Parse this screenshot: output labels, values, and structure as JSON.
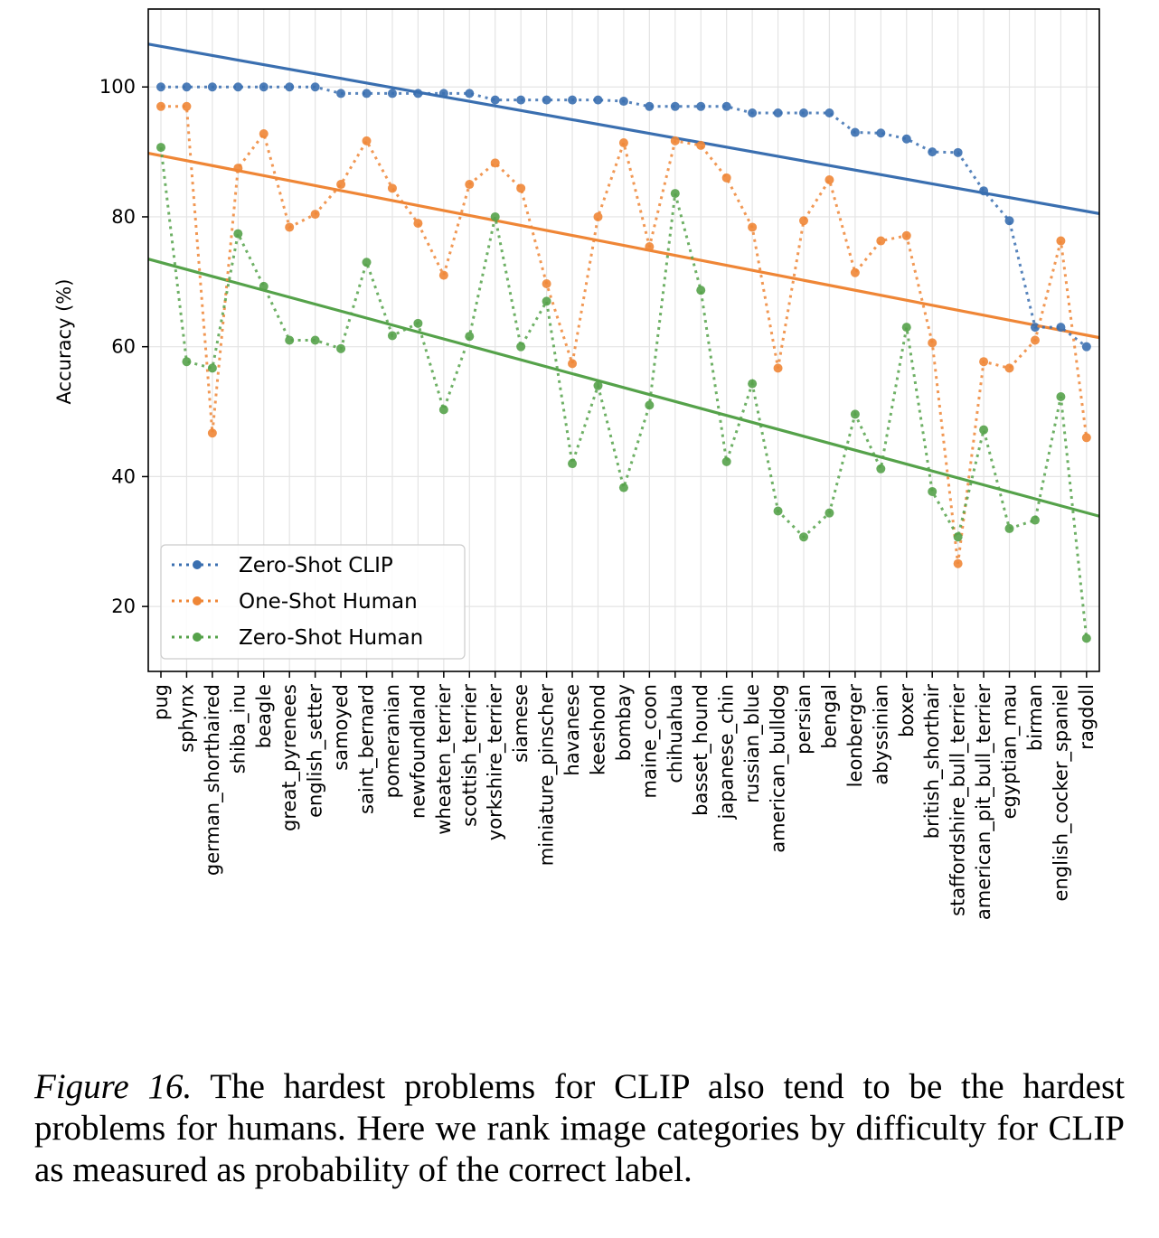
{
  "chart_data": {
    "type": "line",
    "title": "",
    "xlabel": "",
    "ylabel": "Accuracy (%)",
    "ylim": [
      10,
      112
    ],
    "yticks": [
      20,
      40,
      60,
      80,
      100
    ],
    "grid": true,
    "legend_position": "lower-left",
    "categories": [
      "pug",
      "sphynx",
      "german_shorthaired",
      "shiba_inu",
      "beagle",
      "great_pyrenees",
      "english_setter",
      "samoyed",
      "saint_bernard",
      "pomeranian",
      "newfoundland",
      "wheaten_terrier",
      "scottish_terrier",
      "yorkshire_terrier",
      "siamese",
      "miniature_pinscher",
      "havanese",
      "keeshond",
      "bombay",
      "maine_coon",
      "chihuahua",
      "basset_hound",
      "japanese_chin",
      "russian_blue",
      "american_bulldog",
      "persian",
      "bengal",
      "leonberger",
      "abyssinian",
      "boxer",
      "british_shorthair",
      "staffordshire_bull_terrier",
      "american_pit_bull_terrier",
      "egyptian_mau",
      "birman",
      "english_cocker_spaniel",
      "ragdoll"
    ],
    "series": [
      {
        "name": "Zero-Shot CLIP",
        "color": "#3a6fb0",
        "values": [
          100,
          100,
          100,
          100,
          100,
          100,
          100,
          99,
          99,
          99,
          99,
          99,
          99,
          98,
          98,
          98,
          98,
          98,
          97.8,
          97,
          97,
          97,
          97,
          96,
          96,
          96,
          96,
          93,
          92.9,
          92,
          90,
          89.9,
          84,
          79.4,
          63,
          63,
          60
        ],
        "trend": [
          106.6,
          80.5
        ]
      },
      {
        "name": "One-Shot Human",
        "color": "#ef8636",
        "values": [
          97,
          97,
          46.7,
          87.5,
          92.8,
          78.4,
          80.4,
          85,
          91.7,
          84.4,
          79,
          71,
          85,
          88.3,
          84.4,
          69.7,
          57.4,
          80,
          91.4,
          75.4,
          91.7,
          91,
          86,
          78.4,
          56.7,
          79.4,
          85.7,
          71.4,
          76.3,
          77.1,
          60.6,
          26.6,
          57.7,
          56.7,
          61,
          76.3,
          46
        ]
      },
      {
        "name": "Zero-Shot Human",
        "color": "#55a24a",
        "values": [
          90.7,
          57.7,
          56.7,
          77.4,
          69.3,
          61,
          61,
          59.7,
          73,
          61.7,
          63.6,
          50.3,
          61.6,
          80,
          60,
          67,
          42,
          54,
          38.3,
          51,
          83.6,
          68.7,
          42.3,
          54.3,
          34.7,
          30.7,
          34.4,
          49.6,
          41.2,
          63,
          37.7,
          30.7,
          47.2,
          32,
          33.3,
          52.3,
          15.1
        ]
      }
    ],
    "trends": {
      "Zero-Shot CLIP": [
        106.6,
        80.5
      ],
      "One-Shot Human": [
        89.8,
        61.4
      ],
      "Zero-Shot Human": [
        73.5,
        33.9
      ]
    }
  },
  "caption": {
    "figure_label": "Figure 16.",
    "text": "The hardest problems for CLIP also tend to be the hardest problems for humans. Here we rank image categories by difficulty for CLIP as measured as probability of the correct label."
  }
}
